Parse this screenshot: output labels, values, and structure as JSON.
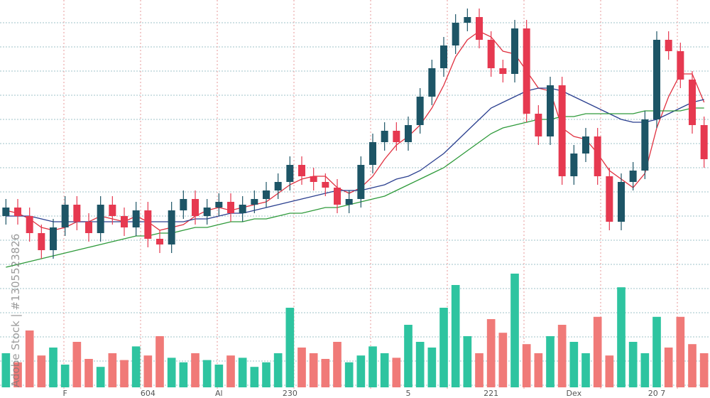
{
  "chart_data": {
    "type": "candlestick",
    "categories": [
      null,
      null,
      null,
      null,
      null,
      "F",
      null,
      null,
      null,
      null,
      null,
      null,
      "604",
      null,
      null,
      null,
      null,
      null,
      "Al",
      null,
      null,
      null,
      null,
      null,
      "230",
      null,
      null,
      null,
      null,
      null,
      null,
      null,
      null,
      null,
      "5",
      null,
      null,
      null,
      null,
      null,
      null,
      "221",
      null,
      null,
      null,
      null,
      null,
      null,
      "Dex",
      null,
      null,
      null,
      null,
      null,
      null,
      "20 7",
      null,
      null,
      null,
      null
    ],
    "open": [
      24,
      27,
      24,
      18,
      12,
      20,
      28,
      22,
      18,
      28,
      24,
      20,
      26,
      16,
      14,
      26,
      30,
      24,
      27,
      29,
      25,
      28,
      30,
      33,
      36,
      42,
      38,
      36,
      34,
      28,
      30,
      42,
      50,
      54,
      50,
      56,
      66,
      76,
      84,
      92,
      94,
      86,
      76,
      74,
      90,
      60,
      52,
      70,
      38,
      46,
      52,
      38,
      22,
      36,
      40,
      58,
      86,
      82,
      72,
      56
    ],
    "high": [
      30,
      30,
      27,
      21,
      23,
      31,
      31,
      25,
      31,
      31,
      27,
      29,
      29,
      19,
      29,
      33,
      33,
      30,
      32,
      32,
      31,
      33,
      36,
      39,
      45,
      45,
      41,
      39,
      37,
      33,
      45,
      53,
      57,
      57,
      59,
      69,
      79,
      87,
      95,
      97,
      97,
      89,
      79,
      93,
      93,
      63,
      73,
      73,
      49,
      55,
      55,
      41,
      39,
      43,
      61,
      89,
      89,
      85,
      75,
      59
    ],
    "low": [
      21,
      21,
      15,
      9,
      9,
      17,
      19,
      15,
      15,
      21,
      17,
      17,
      13,
      11,
      11,
      23,
      21,
      21,
      24,
      22,
      22,
      25,
      27,
      30,
      33,
      35,
      33,
      31,
      25,
      25,
      27,
      39,
      47,
      47,
      47,
      53,
      63,
      73,
      81,
      89,
      83,
      73,
      71,
      71,
      57,
      49,
      49,
      35,
      35,
      43,
      35,
      19,
      19,
      33,
      37,
      55,
      79,
      69,
      53,
      41
    ],
    "close": [
      27,
      24,
      18,
      12,
      20,
      28,
      22,
      18,
      28,
      24,
      20,
      26,
      16,
      14,
      26,
      30,
      24,
      27,
      29,
      25,
      28,
      30,
      33,
      36,
      42,
      38,
      36,
      34,
      28,
      30,
      42,
      50,
      54,
      50,
      56,
      66,
      76,
      84,
      92,
      94,
      86,
      76,
      74,
      90,
      60,
      52,
      70,
      38,
      46,
      52,
      38,
      22,
      36,
      40,
      58,
      86,
      82,
      72,
      56,
      44
    ],
    "up_color": "#1d5566",
    "down_color": "#e63950",
    "ylim": [
      0,
      100
    ],
    "lines": [
      {
        "color": "#e0303f",
        "values": [
          26,
          25,
          23,
          20,
          19,
          20,
          22,
          22,
          24,
          23,
          22,
          24,
          22,
          19,
          20,
          21,
          24,
          26,
          27,
          26,
          27,
          28,
          29,
          32,
          35,
          37,
          38,
          38,
          34,
          32,
          34,
          38,
          44,
          49,
          52,
          56,
          62,
          70,
          80,
          86,
          89,
          87,
          82,
          81,
          75,
          69,
          68,
          55,
          52,
          51,
          46,
          40,
          37,
          34,
          39,
          55,
          66,
          74,
          74,
          64
        ]
      },
      {
        "color": "#2a3f8f",
        "values": [
          24,
          24,
          24,
          23,
          22,
          22,
          22,
          22,
          22,
          22,
          22,
          22,
          22,
          22,
          22,
          22,
          23,
          23,
          24,
          25,
          25,
          26,
          27,
          28,
          29,
          30,
          31,
          32,
          33,
          33,
          33,
          34,
          35,
          37,
          38,
          40,
          43,
          46,
          50,
          54,
          58,
          62,
          64,
          66,
          68,
          69,
          69,
          68,
          66,
          64,
          62,
          60,
          58,
          57,
          57,
          58,
          60,
          62,
          64,
          65
        ]
      },
      {
        "color": "#2e9a3a",
        "values": [
          6,
          7,
          8,
          9,
          10,
          11,
          12,
          13,
          14,
          15,
          16,
          17,
          17,
          18,
          18,
          19,
          20,
          20,
          21,
          22,
          22,
          23,
          23,
          24,
          25,
          25,
          26,
          27,
          27,
          28,
          29,
          30,
          31,
          33,
          35,
          37,
          39,
          41,
          44,
          47,
          50,
          53,
          55,
          56,
          57,
          58,
          58,
          59,
          59,
          60,
          60,
          60,
          60,
          60,
          61,
          61,
          61,
          61,
          62,
          62
        ]
      }
    ],
    "volume": {
      "up_color": "#2ec4a0",
      "down_color": "#f07a78",
      "ylim": [
        0,
        100
      ],
      "values": [
        30,
        22,
        50,
        28,
        35,
        20,
        40,
        25,
        18,
        30,
        24,
        36,
        28,
        45,
        26,
        22,
        30,
        24,
        20,
        28,
        26,
        18,
        22,
        30,
        70,
        35,
        30,
        25,
        40,
        22,
        28,
        36,
        30,
        26,
        55,
        40,
        35,
        70,
        90,
        45,
        30,
        60,
        48,
        100,
        38,
        30,
        45,
        55,
        40,
        30,
        62,
        28,
        88,
        40,
        30,
        62,
        35,
        62,
        38,
        30
      ]
    },
    "watermark": "Adobe Stock | #1305523826"
  }
}
